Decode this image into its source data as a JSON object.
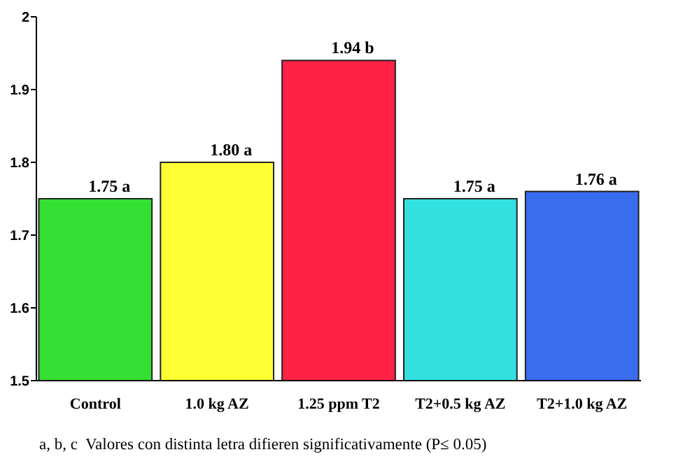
{
  "chart_data": {
    "type": "bar",
    "categories": [
      "Control",
      "1.0 kg AZ",
      "1.25 ppm T2",
      "T2+0.5 kg AZ",
      "T2+1.0 kg AZ"
    ],
    "values": [
      1.75,
      1.8,
      1.94,
      1.75,
      1.76
    ],
    "value_labels": [
      "1.75 a",
      "1.80 a",
      "1.94 b",
      "1.75 a",
      "1.76 a"
    ],
    "colors": [
      "#33e033",
      "#ffff33",
      "#ff2244",
      "#33e0e0",
      "#3a6cf0"
    ],
    "ylim": [
      1.5,
      2
    ],
    "yticks": [
      1.5,
      1.6,
      1.7,
      1.8,
      1.9,
      {
        "value": 2,
        "label": "2"
      }
    ],
    "grid": false,
    "annotations": [
      "a, b, c  Valores con distinta letra difieren significativamente (P≤ 0.05)"
    ]
  }
}
